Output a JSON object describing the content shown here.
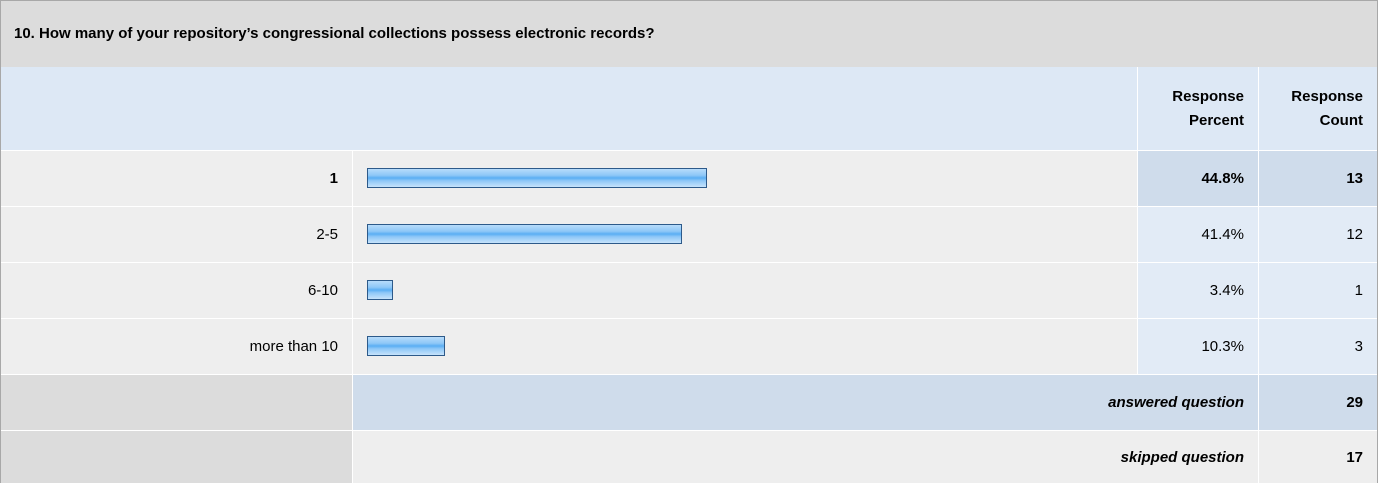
{
  "question": {
    "title": "10. How many of your repository’s congressional collections possess electronic records?"
  },
  "header": {
    "percent_label": "Response Percent",
    "count_label": "Response Count"
  },
  "chart_data": {
    "type": "bar",
    "orientation": "horizontal",
    "categories": [
      "1",
      "2-5",
      "6-10",
      "more than 10"
    ],
    "values": [
      44.8,
      41.4,
      3.4,
      10.3
    ],
    "counts": [
      13,
      12,
      1,
      3
    ],
    "xlim": [
      0,
      100
    ],
    "bar_color": "#8ec7f7"
  },
  "rows": [
    {
      "label": "1",
      "percent": "44.8%",
      "count": "13"
    },
    {
      "label": "2-5",
      "percent": "41.4%",
      "count": "12"
    },
    {
      "label": "6-10",
      "percent": "3.4%",
      "count": "1"
    },
    {
      "label": "more than 10",
      "percent": "10.3%",
      "count": "3"
    }
  ],
  "summary": {
    "answered_label": "answered question",
    "answered_value": "29",
    "skipped_label": "skipped question",
    "skipped_value": "17"
  },
  "colors": {
    "header_bg": "#dde8f5",
    "highlight_bg": "#cfdceb",
    "row_bg": "#eeeeee",
    "title_bg": "#dcdcdc"
  }
}
